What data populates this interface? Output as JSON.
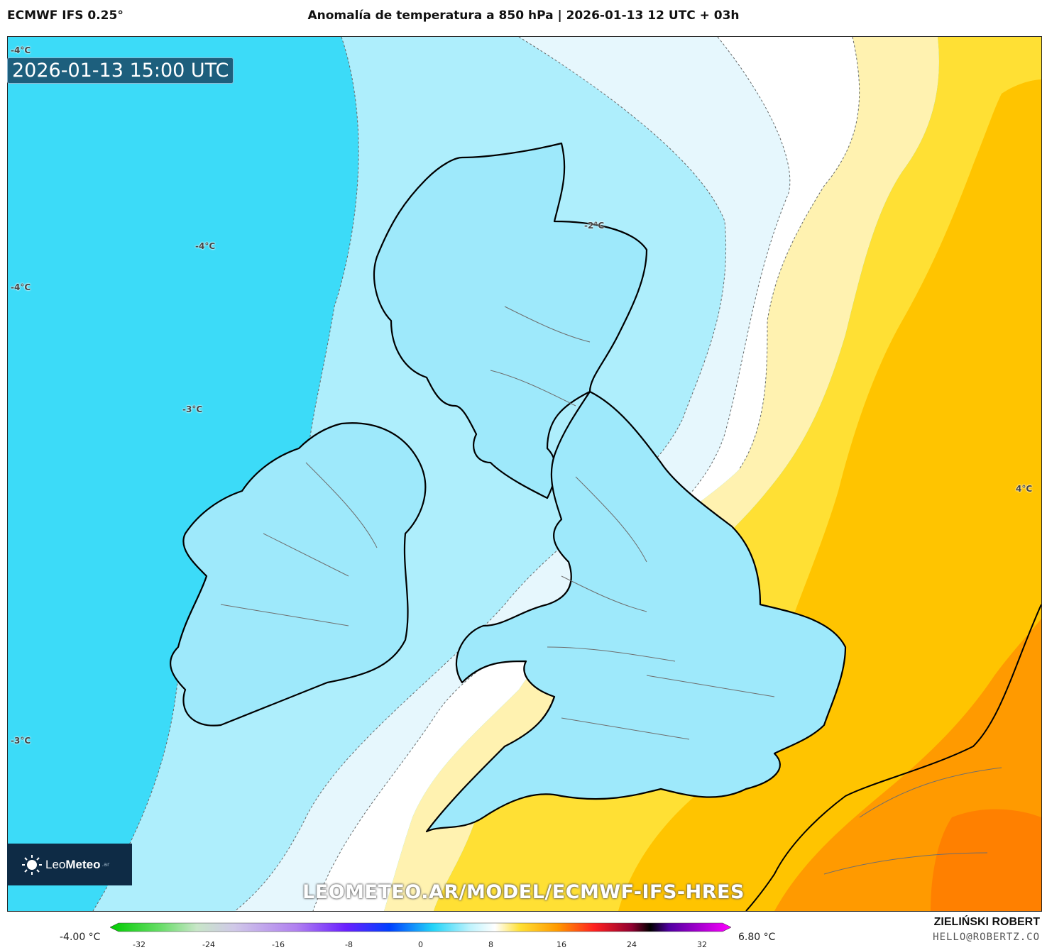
{
  "header": {
    "model": "ECMWF IFS 0.25°",
    "title": "Anomalía de temperatura a 850 hPa | 2026-01-13 12 UTC + 03h"
  },
  "valid_time": "2026-01-13 15:00 UTC",
  "contour_labels": [
    {
      "id": "nw-top",
      "text": "-4°C"
    },
    {
      "id": "mid-atlantic",
      "text": "-4°C"
    },
    {
      "id": "west-edge",
      "text": "-4°C"
    },
    {
      "id": "west-ireland",
      "text": "-3°C"
    },
    {
      "id": "southwest",
      "text": "-3°C"
    },
    {
      "id": "scotland-east",
      "text": "-2°C"
    },
    {
      "id": "north-sea-east",
      "text": "4°C"
    }
  ],
  "logo": {
    "brand_light": "Leo",
    "brand_bold": "Meteo",
    "suffix": ".ar"
  },
  "watermark_url": "LEOMETEO.AR/MODEL/ECMWF-IFS-HRES",
  "colorbar": {
    "min_label": "-4.00 °C",
    "max_label": "6.80 °C",
    "ticks": [
      "-32",
      "-24",
      "-16",
      "-8",
      "0",
      "8",
      "16",
      "24",
      "32"
    ]
  },
  "credits": {
    "author": "ZIELIŃSKI ROBERT",
    "email": "HELLO@ROBERTZ.CO"
  },
  "colors": {
    "cold_strong": "#22d4f8",
    "cold": "#5fe2fa",
    "cool": "#aeeefc",
    "near_zero": "#e6f7fd",
    "neutral": "#ffffff",
    "warm_light": "#fff2b0",
    "warm": "#ffe034",
    "warmer": "#ffc400",
    "hot": "#ff9a00"
  }
}
